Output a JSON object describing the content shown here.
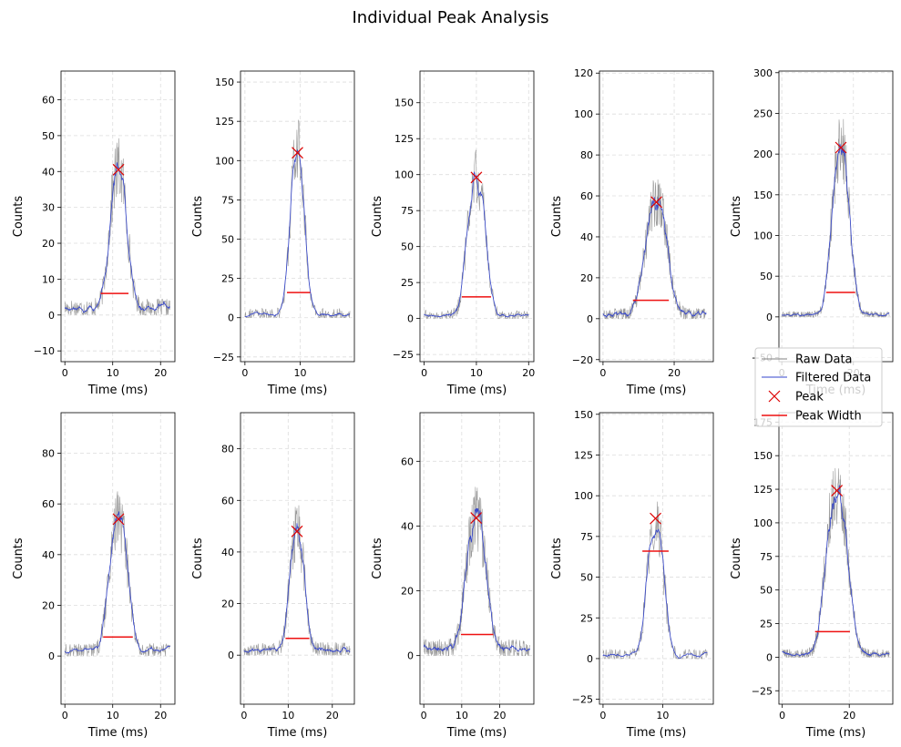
{
  "figure": {
    "title": "Individual Peak Analysis"
  },
  "legend": {
    "entries": [
      {
        "label": "Raw Data",
        "color": "#808080",
        "kind": "line"
      },
      {
        "label": "Filtered Data",
        "color": "#3344cc",
        "kind": "line"
      },
      {
        "label": "Peak",
        "color": "#dd0000",
        "kind": "x-marker"
      },
      {
        "label": "Peak Width",
        "color": "#ee1111",
        "kind": "line"
      }
    ]
  },
  "colors": {
    "raw": "#808080",
    "filtered": "#3344cc",
    "peak": "#dd0000",
    "width": "#ee1111",
    "grid": "#dddddd"
  },
  "chart_data": [
    {
      "type": "line",
      "xlabel": "Time (ms)",
      "ylabel": "Counts",
      "xlim": [
        -0.8,
        23
      ],
      "ylim": [
        -13,
        68
      ],
      "xticks": [
        0,
        10,
        20
      ],
      "yticks": [
        -10,
        0,
        10,
        20,
        30,
        40,
        50,
        60
      ],
      "duration": 22,
      "baseline": 2,
      "noise": 2.5,
      "peak": {
        "x": 11.2,
        "y": 40.5
      },
      "peak_width": {
        "x0": 7.5,
        "x1": 13.3,
        "y": 6
      },
      "grid": true
    },
    {
      "type": "line",
      "xlabel": "Time (ms)",
      "ylabel": "Counts",
      "xlim": [
        -0.8,
        19.8
      ],
      "ylim": [
        -28,
        157
      ],
      "xticks": [
        0,
        10
      ],
      "yticks": [
        -25,
        0,
        25,
        50,
        75,
        100,
        125,
        150
      ],
      "duration": 19,
      "baseline": 2,
      "noise": 4,
      "peak": {
        "x": 9.5,
        "y": 105
      },
      "peak_width": {
        "x0": 7.6,
        "x1": 11.8,
        "y": 16
      },
      "grid": true
    },
    {
      "type": "line",
      "xlabel": "Time (ms)",
      "ylabel": "Counts",
      "xlim": [
        -0.8,
        21
      ],
      "ylim": [
        -30,
        172
      ],
      "xticks": [
        0,
        10,
        20
      ],
      "yticks": [
        -25,
        0,
        25,
        50,
        75,
        100,
        125,
        150
      ],
      "duration": 20,
      "baseline": 2,
      "noise": 4,
      "peak": {
        "x": 10,
        "y": 98
      },
      "peak_width": {
        "x0": 7.2,
        "x1": 12.8,
        "y": 15
      },
      "grid": true
    },
    {
      "type": "line",
      "xlabel": "Time (ms)",
      "ylabel": "Counts",
      "xlim": [
        -1,
        31
      ],
      "ylim": [
        -21,
        121
      ],
      "xticks": [
        0,
        20
      ],
      "yticks": [
        -20,
        0,
        20,
        40,
        60,
        80,
        100,
        120
      ],
      "duration": 29,
      "baseline": 2,
      "noise": 3,
      "peak": {
        "x": 15,
        "y": 57
      },
      "peak_width": {
        "x0": 8.4,
        "x1": 18.5,
        "y": 9
      },
      "grid": true
    },
    {
      "type": "line",
      "xlabel": "Time (ms)",
      "ylabel": "Counts",
      "xlim": [
        -0.8,
        31
      ],
      "ylim": [
        -55,
        302
      ],
      "xticks": [
        0,
        20
      ],
      "yticks": [
        -50,
        0,
        50,
        100,
        150,
        200,
        250,
        300
      ],
      "duration": 30,
      "baseline": 2,
      "noise": 5,
      "peak": {
        "x": 16.5,
        "y": 208
      },
      "peak_width": {
        "x0": 12.4,
        "x1": 20.5,
        "y": 30
      },
      "grid": true
    },
    {
      "type": "line",
      "xlabel": "Time (ms)",
      "ylabel": "Counts",
      "xlim": [
        -0.8,
        23
      ],
      "ylim": [
        -19,
        96
      ],
      "xticks": [
        0,
        10,
        20
      ],
      "yticks": [
        0,
        20,
        40,
        60,
        80
      ],
      "duration": 22,
      "baseline": 2,
      "noise": 3,
      "peak": {
        "x": 11.2,
        "y": 54
      },
      "peak_width": {
        "x0": 8,
        "x1": 14.2,
        "y": 7.5
      },
      "grid": true
    },
    {
      "type": "line",
      "xlabel": "Time (ms)",
      "ylabel": "Counts",
      "xlim": [
        -0.8,
        25
      ],
      "ylim": [
        -19,
        94
      ],
      "xticks": [
        0,
        10,
        20
      ],
      "yticks": [
        0,
        20,
        40,
        60,
        80
      ],
      "duration": 24,
      "baseline": 2,
      "noise": 3,
      "peak": {
        "x": 12,
        "y": 48
      },
      "peak_width": {
        "x0": 9.4,
        "x1": 14.8,
        "y": 6.5
      },
      "grid": true
    },
    {
      "type": "line",
      "xlabel": "Time (ms)",
      "ylabel": "Counts",
      "xlim": [
        -1,
        29
      ],
      "ylim": [
        -15,
        75
      ],
      "xticks": [
        0,
        10,
        20
      ],
      "yticks": [
        0,
        20,
        40,
        60
      ],
      "duration": 28,
      "baseline": 2,
      "noise": 3,
      "peak": {
        "x": 13.8,
        "y": 42.5
      },
      "peak_width": {
        "x0": 9.8,
        "x1": 18.3,
        "y": 6.5
      },
      "grid": true
    },
    {
      "type": "line",
      "xlabel": "Time (ms)",
      "ylabel": "Counts",
      "xlim": [
        -0.6,
        18.5
      ],
      "ylim": [
        -28,
        151
      ],
      "xticks": [
        0,
        10
      ],
      "yticks": [
        -25,
        0,
        25,
        50,
        75,
        100,
        125,
        150
      ],
      "duration": 17.5,
      "baseline": 2,
      "noise": 4,
      "peak": {
        "x": 8.8,
        "y": 86
      },
      "peak_width": {
        "x0": 6.6,
        "x1": 11,
        "y": 66
      },
      "grid": true
    },
    {
      "type": "line",
      "xlabel": "Time (ms)",
      "ylabel": "Counts",
      "xlim": [
        -1,
        33
      ],
      "ylim": [
        -35,
        182
      ],
      "xticks": [
        0,
        20
      ],
      "yticks": [
        -25,
        0,
        25,
        50,
        75,
        100,
        125,
        150,
        175
      ],
      "duration": 32,
      "baseline": 2,
      "noise": 4,
      "peak": {
        "x": 16.3,
        "y": 124
      },
      "peak_width": {
        "x0": 9.8,
        "x1": 20.2,
        "y": 19
      },
      "grid": true
    }
  ]
}
